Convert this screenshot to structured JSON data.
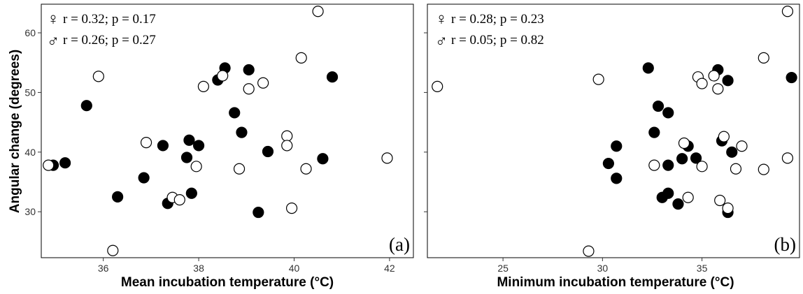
{
  "y_axis_label": "Angular change (degrees)",
  "chart_data": [
    {
      "type": "scatter",
      "panel_label": "(a)",
      "xlabel": "Mean incubation temperature (°C)",
      "ylabel": "Angular change (degrees)",
      "xlim": [
        34.7,
        42.5
      ],
      "ylim": [
        22.3,
        64.8
      ],
      "xticks": [
        36,
        38,
        40,
        42
      ],
      "yticks": [
        30,
        40,
        50,
        60
      ],
      "grid": false,
      "stats": [
        {
          "symbol": "♀",
          "text": "r = 0.32; p = 0.17"
        },
        {
          "symbol": "♂",
          "text": "r = 0.26; p = 0.27"
        }
      ],
      "series": [
        {
          "marker": "filled",
          "color": "#000000",
          "points": [
            [
              34.95,
              37.8
            ],
            [
              35.2,
              38.2
            ],
            [
              35.65,
              47.8
            ],
            [
              36.3,
              32.5
            ],
            [
              36.85,
              35.7
            ],
            [
              37.25,
              41.1
            ],
            [
              37.35,
              31.4
            ],
            [
              37.75,
              39.1
            ],
            [
              37.8,
              42.0
            ],
            [
              37.85,
              33.1
            ],
            [
              38.0,
              41.1
            ],
            [
              38.4,
              52.1
            ],
            [
              38.55,
              54.1
            ],
            [
              38.75,
              46.6
            ],
            [
              38.9,
              43.3
            ],
            [
              39.05,
              53.8
            ],
            [
              39.25,
              29.9
            ],
            [
              39.45,
              40.1
            ],
            [
              40.6,
              38.9
            ],
            [
              40.8,
              52.6
            ]
          ]
        },
        {
          "marker": "open",
          "color": "#000000",
          "points": [
            [
              34.85,
              37.8
            ],
            [
              35.9,
              52.7
            ],
            [
              36.2,
              23.5
            ],
            [
              36.9,
              41.6
            ],
            [
              37.45,
              32.4
            ],
            [
              37.6,
              32.0
            ],
            [
              37.95,
              37.6
            ],
            [
              38.1,
              51.0
            ],
            [
              38.5,
              52.8
            ],
            [
              38.85,
              37.2
            ],
            [
              39.05,
              50.6
            ],
            [
              39.35,
              51.6
            ],
            [
              39.85,
              42.7
            ],
            [
              39.85,
              41.1
            ],
            [
              39.95,
              30.6
            ],
            [
              40.15,
              55.8
            ],
            [
              40.25,
              37.2
            ],
            [
              40.5,
              63.6
            ],
            [
              41.95,
              39.0
            ]
          ]
        }
      ]
    },
    {
      "type": "scatter",
      "panel_label": "(b)",
      "xlabel": "Minimum incubation temperature (°C)",
      "ylabel": "",
      "xlim": [
        21.2,
        39.9
      ],
      "ylim": [
        22.3,
        64.8
      ],
      "xticks": [
        25,
        30,
        35
      ],
      "yticks": [
        30,
        40,
        50,
        60
      ],
      "grid": false,
      "stats": [
        {
          "symbol": "♀",
          "text": "r = 0.28; p = 0.23"
        },
        {
          "symbol": "♂",
          "text": "r = 0.05; p = 0.82"
        }
      ],
      "series": [
        {
          "marker": "filled",
          "color": "#000000",
          "points": [
            [
              30.3,
              38.1
            ],
            [
              30.7,
              41.0
            ],
            [
              30.7,
              35.6
            ],
            [
              32.3,
              54.1
            ],
            [
              32.6,
              43.3
            ],
            [
              32.8,
              47.7
            ],
            [
              33.0,
              32.4
            ],
            [
              33.3,
              46.6
            ],
            [
              33.3,
              37.8
            ],
            [
              33.3,
              33.1
            ],
            [
              33.8,
              31.3
            ],
            [
              34.0,
              38.9
            ],
            [
              34.3,
              41.0
            ],
            [
              34.7,
              39.0
            ],
            [
              35.8,
              53.8
            ],
            [
              36.0,
              41.9
            ],
            [
              36.3,
              52.0
            ],
            [
              36.3,
              29.9
            ],
            [
              36.5,
              40.0
            ],
            [
              39.5,
              52.5
            ]
          ]
        },
        {
          "marker": "open",
          "color": "#000000",
          "points": [
            [
              21.7,
              51.0
            ],
            [
              29.3,
              23.4
            ],
            [
              29.8,
              52.2
            ],
            [
              32.6,
              37.8
            ],
            [
              34.1,
              41.5
            ],
            [
              34.3,
              32.4
            ],
            [
              34.8,
              52.6
            ],
            [
              35.0,
              51.5
            ],
            [
              35.0,
              37.6
            ],
            [
              35.6,
              52.8
            ],
            [
              35.8,
              50.6
            ],
            [
              35.9,
              31.9
            ],
            [
              36.1,
              42.6
            ],
            [
              36.3,
              30.6
            ],
            [
              36.7,
              37.2
            ],
            [
              37.0,
              41.0
            ],
            [
              38.1,
              55.8
            ],
            [
              38.1,
              37.1
            ],
            [
              39.3,
              63.6
            ],
            [
              39.3,
              39.0
            ]
          ]
        }
      ]
    }
  ]
}
